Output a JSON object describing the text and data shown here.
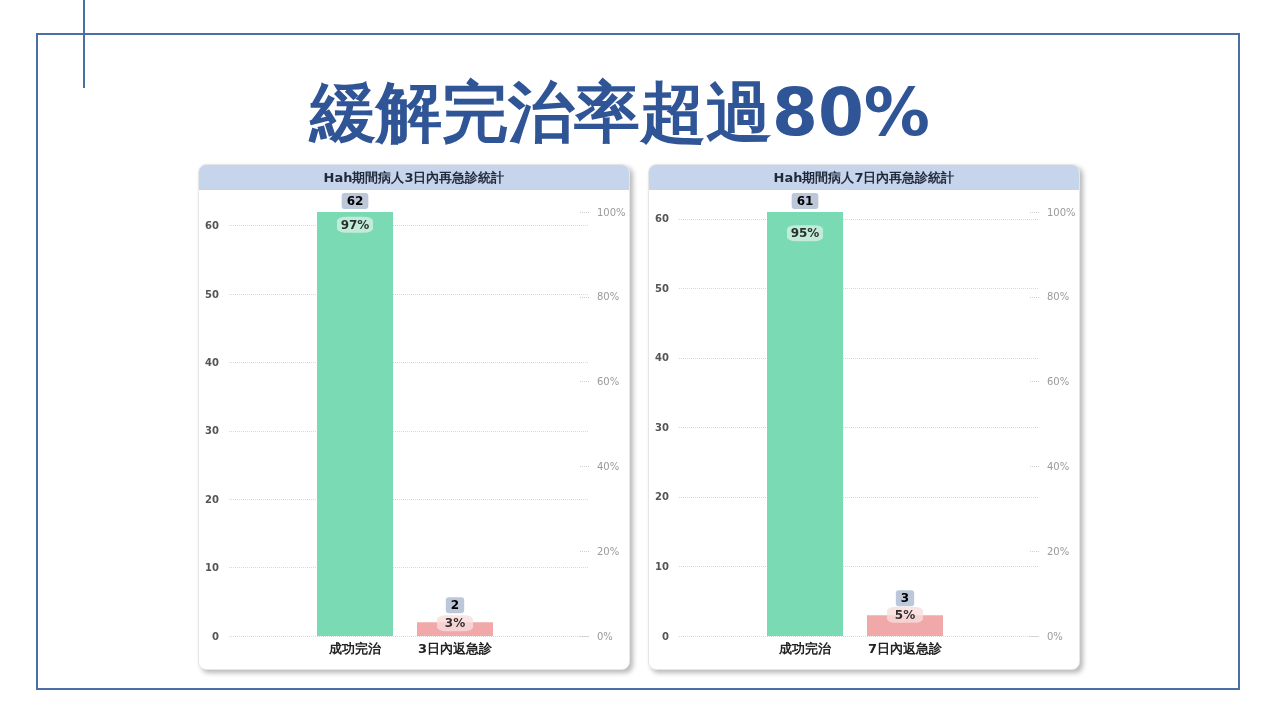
{
  "chart_data": [
    {
      "type": "other",
      "title": "緩解完治率超過80%"
    },
    {
      "type": "bar",
      "title": "Hah期間病人3日內再急診統計",
      "categories": [
        "成功完治",
        "3日內返急診"
      ],
      "series": [
        {
          "type": "bar",
          "colors": [
            "#7adab4",
            "#f0a8a8"
          ],
          "values": [
            62,
            2
          ],
          "value_labels": [
            "62",
            "2"
          ]
        },
        {
          "type": "scatter",
          "axis": "y2",
          "colors": [
            "#d6efe4",
            "#f9dcdc"
          ],
          "values": [
            97,
            3
          ],
          "value_labels": [
            "97%",
            "3%"
          ]
        }
      ],
      "marker": "square",
      "ylim": [
        0,
        62
      ],
      "yticks": [
        0,
        10,
        20,
        30,
        40,
        50,
        60
      ],
      "y2lim": [
        0,
        100
      ],
      "y2ticks": [
        {
          "value": 0,
          "label": "0%"
        },
        {
          "value": 20,
          "label": "20%"
        },
        {
          "value": 40,
          "label": "40%"
        },
        {
          "value": 60,
          "label": "60%"
        },
        {
          "value": 80,
          "label": "80%"
        },
        {
          "value": 100,
          "label": "100%"
        }
      ],
      "grid": "y"
    },
    {
      "type": "bar",
      "title": "Hah期間病人7日內再急診統計",
      "categories": [
        "成功完治",
        "7日內返急診"
      ],
      "series": [
        {
          "type": "bar",
          "colors": [
            "#7adab4",
            "#f0a8a8"
          ],
          "values": [
            61,
            3
          ],
          "value_labels": [
            "61",
            "3"
          ]
        },
        {
          "type": "scatter",
          "axis": "y2",
          "colors": [
            "#d6efe4",
            "#f9dcdc"
          ],
          "values": [
            95,
            5
          ],
          "value_labels": [
            "95%",
            "5%"
          ]
        }
      ],
      "marker": "square",
      "ylim": [
        0,
        61
      ],
      "yticks": [
        0,
        10,
        20,
        30,
        40,
        50,
        60
      ],
      "y2lim": [
        0,
        100
      ],
      "y2ticks": [
        {
          "value": 0,
          "label": "0%"
        },
        {
          "value": 20,
          "label": "20%"
        },
        {
          "value": 40,
          "label": "40%"
        },
        {
          "value": 60,
          "label": "60%"
        },
        {
          "value": 80,
          "label": "80%"
        },
        {
          "value": 100,
          "label": "100%"
        }
      ],
      "grid": "y"
    }
  ]
}
